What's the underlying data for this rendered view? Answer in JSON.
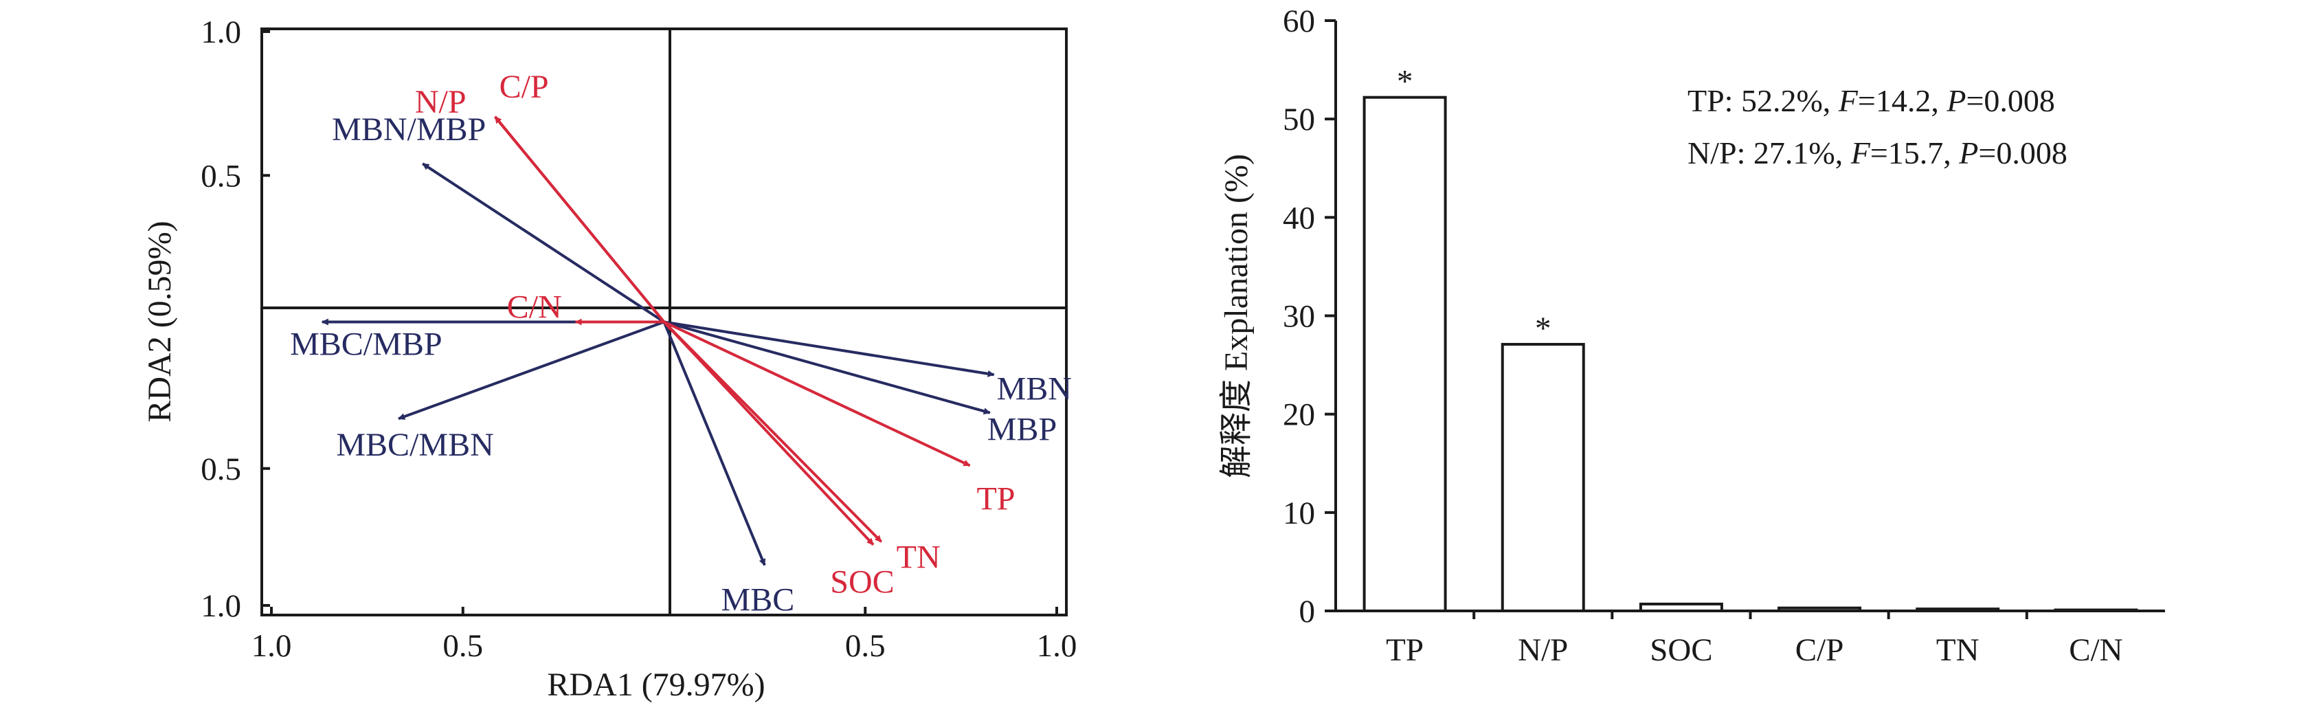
{
  "colors": {
    "soil": "#d6283b",
    "microbial": "#262b61",
    "axis": "#1a1a1a",
    "bar_fill": "#ffffff"
  },
  "chart_data": [
    {
      "type": "scatter",
      "subtype": "rda-biplot",
      "xlabel": "RDA1 (79.97%)",
      "ylabel": "RDA2 (0.59%)",
      "xlim": [
        -1.0,
        1.0
      ],
      "ylim": [
        -1.0,
        1.0
      ],
      "x_tick_labels": [
        "1.0",
        "0.5",
        "0.5",
        "1.0"
      ],
      "y_tick_labels": [
        "1.0",
        "0.5",
        "0.5",
        "1.0"
      ],
      "x_tick_values": [
        -1.0,
        -0.5,
        0.5,
        1.0
      ],
      "y_tick_values": [
        1.0,
        0.5,
        -0.5,
        -1.0
      ],
      "grid": false,
      "zero_lines": true,
      "vectors": [
        {
          "label": "MBN/MBP",
          "group": "microbial",
          "x": -0.6,
          "y": 0.54
        },
        {
          "label": "MBC/MBP",
          "group": "microbial",
          "x": -0.85,
          "y": 0.0
        },
        {
          "label": "MBC/MBN",
          "group": "microbial",
          "x": -0.66,
          "y": -0.33
        },
        {
          "label": "MBN",
          "group": "microbial",
          "x": 0.82,
          "y": -0.18
        },
        {
          "label": "MBP",
          "group": "microbial",
          "x": 0.81,
          "y": -0.31
        },
        {
          "label": "MBC",
          "group": "microbial",
          "x": 0.25,
          "y": -0.83
        },
        {
          "label": "N/P",
          "group": "soil",
          "x": -0.42,
          "y": 0.7
        },
        {
          "label": "C/P",
          "group": "soil",
          "x": -0.42,
          "y": 0.7
        },
        {
          "label": "C/N",
          "group": "soil",
          "x": -0.22,
          "y": 0.0
        },
        {
          "label": "TP",
          "group": "soil",
          "x": 0.76,
          "y": -0.49
        },
        {
          "label": "TN",
          "group": "soil",
          "x": 0.54,
          "y": -0.75
        },
        {
          "label": "SOC",
          "group": "soil",
          "x": 0.52,
          "y": -0.76
        }
      ]
    },
    {
      "type": "bar",
      "categories": [
        "TP",
        "N/P",
        "SOC",
        "C/P",
        "TN",
        "C/N"
      ],
      "values": [
        52.2,
        27.1,
        0.7,
        0.3,
        0.2,
        0.1
      ],
      "significance": [
        "*",
        "*",
        "",
        "",
        "",
        ""
      ],
      "ylabel": "解释度 Explanation (%)",
      "xlabel": "",
      "ylim": [
        0,
        60
      ],
      "y_ticks": [
        0,
        10,
        20,
        30,
        40,
        50,
        60
      ],
      "annotations": [
        {
          "var": "TP: ",
          "pct": "52.2%, ",
          "f_sym": "F",
          "f_val": "=14.2, ",
          "p_sym": "P",
          "p_val": "=0.008"
        },
        {
          "var": "N/P: ",
          "pct": "27.1%, ",
          "f_sym": "F",
          "f_val": "=15.7, ",
          "p_sym": "P",
          "p_val": "=0.008"
        }
      ]
    }
  ]
}
